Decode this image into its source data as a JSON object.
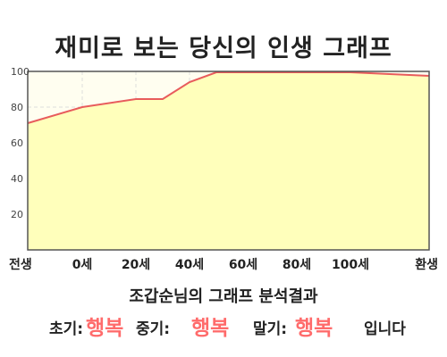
{
  "title": "재미로 보는 당신의 인생 그래프",
  "chart_data": {
    "type": "area",
    "title": "재미로 보는 당신의 인생 그래프",
    "x_tick_labels": [
      "전생",
      "0세",
      "20세",
      "40세",
      "60세",
      "80세",
      "100세",
      "환생"
    ],
    "y_ticks": [
      20,
      40,
      60,
      80,
      100
    ],
    "ylim": [
      0,
      100
    ],
    "grid": true,
    "points": [
      {
        "x": "전생",
        "y": 71
      },
      {
        "x": "0세",
        "y": 80
      },
      {
        "x": "20세",
        "y": 84.5
      },
      {
        "x": "30세",
        "y": 84.5
      },
      {
        "x": "40세",
        "y": 94
      },
      {
        "x": "50세",
        "y": 99.5
      },
      {
        "x": "60세",
        "y": 99.5
      },
      {
        "x": "80세",
        "y": 99.5
      },
      {
        "x": "100세",
        "y": 99.5
      },
      {
        "x": "환생",
        "y": 97.5
      }
    ],
    "colors": {
      "line": "#e85c5c",
      "fill": "#ffffbb",
      "background": "#fffef0",
      "grid": "#dddddd"
    }
  },
  "result": {
    "heading": "조갑순님의 그래프 분석결과",
    "early_label": "초기:",
    "early_value": "행복",
    "middle_label": "중기:",
    "middle_value": "행복",
    "late_label": "말기:",
    "late_value": "행복",
    "ending": "입니다"
  }
}
